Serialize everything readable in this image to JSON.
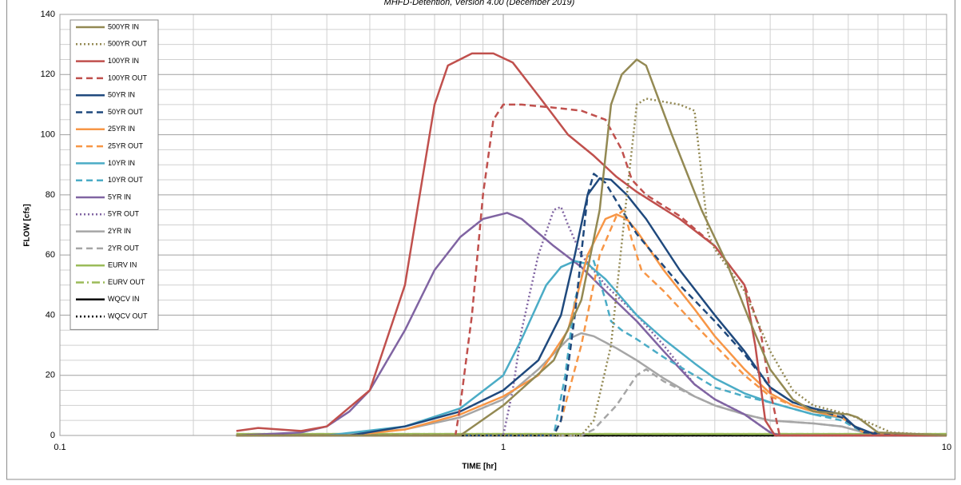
{
  "chart_data": {
    "type": "line",
    "title": "MHFD-Detention, Version 4.00 (December 2019)",
    "x_label": "TIME [hr]",
    "y_label": "FLOW [cfs]",
    "x_log": true,
    "grid": true,
    "xlim": [
      0.1,
      10
    ],
    "xticks": [
      0.1,
      1,
      10
    ],
    "xminor": [
      0.2,
      0.3,
      0.4,
      0.5,
      0.6,
      0.7,
      0.8,
      0.9,
      2,
      3,
      4,
      5,
      6,
      7,
      8,
      9
    ],
    "ylim": [
      0,
      140
    ],
    "yticks": [
      0,
      20,
      40,
      60,
      80,
      100,
      120,
      140
    ],
    "yminor": [
      5,
      10,
      15,
      25,
      30,
      35,
      45,
      50,
      55,
      65,
      70,
      75,
      85,
      90,
      95,
      105,
      110,
      115,
      125,
      130,
      135
    ],
    "legend": "upper left",
    "series": [
      {
        "name": "500YR IN",
        "color": "#938953",
        "style": "solid",
        "x": [
          0.25,
          0.8,
          1.0,
          1.3,
          1.5,
          1.65,
          1.75,
          1.85,
          2.0,
          2.1,
          2.4,
          2.8,
          3.2,
          3.6,
          4.0,
          4.5,
          5.0,
          6.0,
          6.3,
          7.0,
          10
        ],
        "values": [
          0,
          0,
          10,
          25,
          45,
          75,
          110,
          120,
          125,
          123,
          100,
          75,
          57,
          38,
          22,
          12,
          8,
          7,
          6,
          1,
          0
        ]
      },
      {
        "name": "500YR OUT",
        "color": "#938953",
        "style": "dotted",
        "x": [
          0.25,
          1.5,
          1.6,
          1.75,
          1.9,
          2.0,
          2.1,
          2.5,
          2.7,
          2.9,
          3.0,
          3.5,
          4.0,
          4.5,
          5.0,
          6.0,
          6.5,
          7.5,
          10
        ],
        "values": [
          0,
          0,
          5,
          30,
          80,
          110,
          112,
          110,
          108,
          67,
          62,
          48,
          28,
          15,
          10,
          7,
          5,
          1,
          0
        ]
      },
      {
        "name": "100YR IN",
        "color": "#c0504d",
        "style": "solid",
        "x": [
          0.25,
          0.28,
          0.35,
          0.4,
          0.5,
          0.6,
          0.7,
          0.75,
          0.85,
          0.95,
          1.05,
          1.2,
          1.4,
          1.6,
          1.8,
          2.0,
          2.5,
          3.0,
          3.5,
          3.7,
          3.9,
          4.1,
          10
        ],
        "values": [
          1.5,
          2.5,
          1.5,
          3,
          15,
          50,
          110,
          123,
          127,
          127,
          124,
          113,
          100,
          93,
          86,
          81,
          72,
          63,
          50,
          30,
          5,
          0,
          0
        ]
      },
      {
        "name": "100YR OUT",
        "color": "#c0504d",
        "style": "dashed",
        "x": [
          0.25,
          0.78,
          0.8,
          0.85,
          0.9,
          0.95,
          1.0,
          1.1,
          1.3,
          1.5,
          1.7,
          1.85,
          1.95,
          2.1,
          2.5,
          3.0,
          3.5,
          3.8,
          4.0,
          4.2,
          10
        ],
        "values": [
          0,
          0,
          10,
          40,
          80,
          105,
          110,
          110,
          109,
          108,
          105,
          95,
          85,
          80,
          73,
          63,
          50,
          35,
          15,
          0,
          0
        ]
      },
      {
        "name": "50YR IN",
        "color": "#1f497d",
        "style": "solid",
        "x": [
          0.25,
          0.45,
          0.6,
          0.8,
          1.0,
          1.2,
          1.35,
          1.45,
          1.55,
          1.65,
          1.75,
          1.9,
          2.1,
          2.5,
          3.0,
          3.5,
          4.0,
          4.5,
          5.0,
          5.8,
          6.2,
          7.0,
          10
        ],
        "values": [
          0,
          0,
          3,
          8,
          15,
          25,
          40,
          60,
          80,
          85.5,
          85,
          80,
          72,
          55,
          40,
          28,
          16,
          11,
          9,
          7,
          3,
          0,
          0
        ]
      },
      {
        "name": "50YR OUT",
        "color": "#1f497d",
        "style": "dashed",
        "x": [
          0.25,
          1.3,
          1.35,
          1.45,
          1.55,
          1.6,
          1.7,
          1.85,
          2.0,
          2.5,
          3.0,
          3.5,
          4.0,
          4.5,
          5.0,
          5.8,
          6.5,
          10
        ],
        "values": [
          0,
          0,
          5,
          40,
          80,
          87,
          84,
          75,
          67,
          50,
          38,
          27,
          16,
          11,
          9,
          6,
          1,
          0
        ]
      },
      {
        "name": "25YR IN",
        "color": "#f79646",
        "style": "solid",
        "x": [
          0.25,
          0.45,
          0.6,
          0.8,
          1.0,
          1.2,
          1.4,
          1.55,
          1.7,
          1.8,
          1.9,
          2.0,
          2.3,
          2.7,
          3.0,
          3.5,
          4.0,
          4.5,
          5.0,
          5.8,
          6.5,
          10
        ],
        "values": [
          0,
          0,
          2,
          7,
          13,
          20,
          35,
          60,
          72,
          73.5,
          72,
          68,
          55,
          42,
          33,
          22,
          14,
          10,
          8,
          6,
          1,
          0
        ]
      },
      {
        "name": "25YR OUT",
        "color": "#f79646",
        "style": "dashed",
        "x": [
          0.25,
          1.3,
          1.35,
          1.5,
          1.65,
          1.8,
          1.87,
          1.95,
          2.05,
          2.3,
          2.7,
          3.0,
          3.5,
          4.0,
          4.5,
          5.8,
          6.5,
          10
        ],
        "values": [
          0,
          0,
          5,
          30,
          60,
          73,
          75,
          65,
          55,
          48,
          37,
          30,
          20,
          13,
          10,
          6,
          1,
          0
        ]
      },
      {
        "name": "10YR IN",
        "color": "#4bacc6",
        "style": "solid",
        "x": [
          0.25,
          0.4,
          0.6,
          0.8,
          1.0,
          1.1,
          1.25,
          1.35,
          1.45,
          1.55,
          1.7,
          2.0,
          2.3,
          2.7,
          3.0,
          3.5,
          4.0,
          5.0,
          5.8,
          6.5,
          10
        ],
        "values": [
          0,
          0,
          3,
          9,
          20,
          32,
          50,
          56,
          58,
          57,
          52,
          40,
          32,
          24,
          19,
          14,
          11,
          7,
          6,
          1,
          0
        ]
      },
      {
        "name": "10YR OUT",
        "color": "#4bacc6",
        "style": "dashed",
        "x": [
          0.25,
          1.3,
          1.38,
          1.45,
          1.55,
          1.6,
          1.7,
          1.75,
          1.85,
          2.0,
          2.3,
          2.7,
          3.0,
          3.5,
          4.0,
          5.0,
          5.8,
          6.5,
          10
        ],
        "values": [
          0,
          0,
          20,
          45,
          60,
          58,
          45,
          38,
          35,
          32,
          26,
          20,
          16,
          13,
          11,
          7,
          5,
          1,
          0
        ]
      },
      {
        "name": "5YR IN",
        "color": "#8064a2",
        "style": "solid",
        "x": [
          0.25,
          0.35,
          0.4,
          0.45,
          0.5,
          0.6,
          0.7,
          0.8,
          0.9,
          1.02,
          1.1,
          1.3,
          1.5,
          1.7,
          2.0,
          2.3,
          2.7,
          3.0,
          3.5,
          4.0,
          4.2,
          10
        ],
        "values": [
          0,
          1,
          3,
          8,
          15,
          35,
          55,
          66,
          72,
          74,
          72,
          63,
          56,
          48,
          38,
          28,
          17,
          12,
          7,
          1,
          0,
          0
        ]
      },
      {
        "name": "5YR OUT",
        "color": "#8064a2",
        "style": "dotted",
        "x": [
          0.25,
          1.0,
          1.05,
          1.1,
          1.2,
          1.3,
          1.35,
          1.4,
          1.5,
          1.7,
          2.0,
          2.3,
          2.7,
          3.0,
          3.5,
          4.0,
          4.2,
          10
        ],
        "values": [
          0,
          0,
          15,
          35,
          60,
          75,
          76,
          70,
          60,
          50,
          40,
          30,
          17,
          12,
          7,
          1,
          0,
          0
        ]
      },
      {
        "name": "2YR IN",
        "color": "#a6a6a6",
        "style": "solid",
        "x": [
          0.25,
          0.4,
          0.6,
          0.8,
          1.0,
          1.2,
          1.4,
          1.5,
          1.6,
          1.8,
          2.0,
          2.3,
          2.7,
          3.0,
          3.5,
          4.0,
          5.0,
          5.8,
          6.5,
          10
        ],
        "values": [
          0,
          0,
          2,
          6,
          12,
          22,
          32,
          34,
          33,
          29,
          25,
          19,
          13,
          10,
          7,
          5,
          4,
          3,
          1,
          0
        ]
      },
      {
        "name": "2YR OUT",
        "color": "#a6a6a6",
        "style": "dashed",
        "x": [
          0.25,
          1.5,
          1.6,
          1.8,
          2.0,
          2.1,
          2.3,
          2.7,
          3.0,
          3.5,
          4.0,
          5.0,
          5.8,
          6.5,
          10
        ],
        "values": [
          0,
          0,
          2,
          10,
          20,
          22,
          18,
          13,
          10,
          7,
          5,
          4,
          3,
          1,
          0
        ]
      },
      {
        "name": "EURV IN",
        "color": "#9bbb59",
        "style": "solid",
        "x": [
          0.25,
          10
        ],
        "values": [
          0.5,
          0.5
        ]
      },
      {
        "name": "EURV OUT",
        "color": "#9bbb59",
        "style": "dashdot",
        "x": [
          0.25,
          10
        ],
        "values": [
          0.5,
          0.5
        ]
      },
      {
        "name": "WQCV IN",
        "color": "#000000",
        "style": "solid",
        "x": [
          0.25,
          10
        ],
        "values": [
          0,
          0
        ]
      },
      {
        "name": "WQCV OUT",
        "color": "#000000",
        "style": "dotted",
        "x": [
          0.25,
          10
        ],
        "values": [
          0,
          0
        ]
      }
    ]
  }
}
